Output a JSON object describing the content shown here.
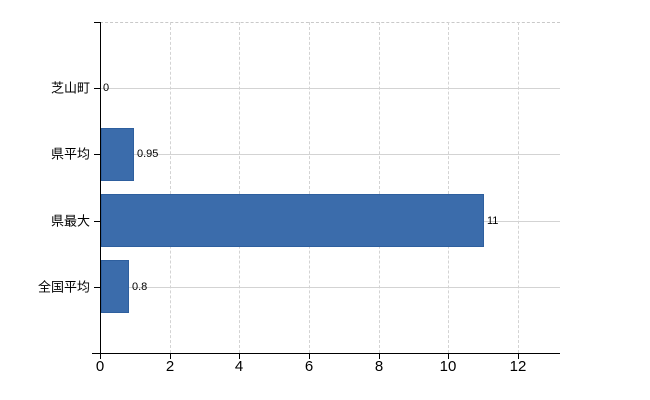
{
  "chart_data": {
    "type": "bar",
    "orientation": "horizontal",
    "title": "",
    "xlabel": "",
    "ylabel": "",
    "categories": [
      "芝山町",
      "県平均",
      "県最大",
      "全国平均"
    ],
    "values": [
      0,
      0.95,
      11,
      0.8
    ],
    "value_labels": [
      "0",
      "0.95",
      "11",
      "0.8"
    ],
    "x_tick_values": [
      0,
      2,
      4,
      6,
      8,
      10,
      12
    ],
    "x_tick_labels": [
      "0",
      "2",
      "4",
      "6",
      "8",
      "10",
      "12"
    ],
    "xlim": [
      0,
      13.2
    ],
    "grid": "on",
    "legend_position": "none",
    "colors": {
      "bar_fill": "#3b6cab",
      "bar_border": "#2e5f9e",
      "gridline": "#d3d3d3",
      "plot_top_border": "#c9c9c9",
      "axis": "#000000",
      "text": "#000000",
      "background": "#ffffff"
    }
  }
}
